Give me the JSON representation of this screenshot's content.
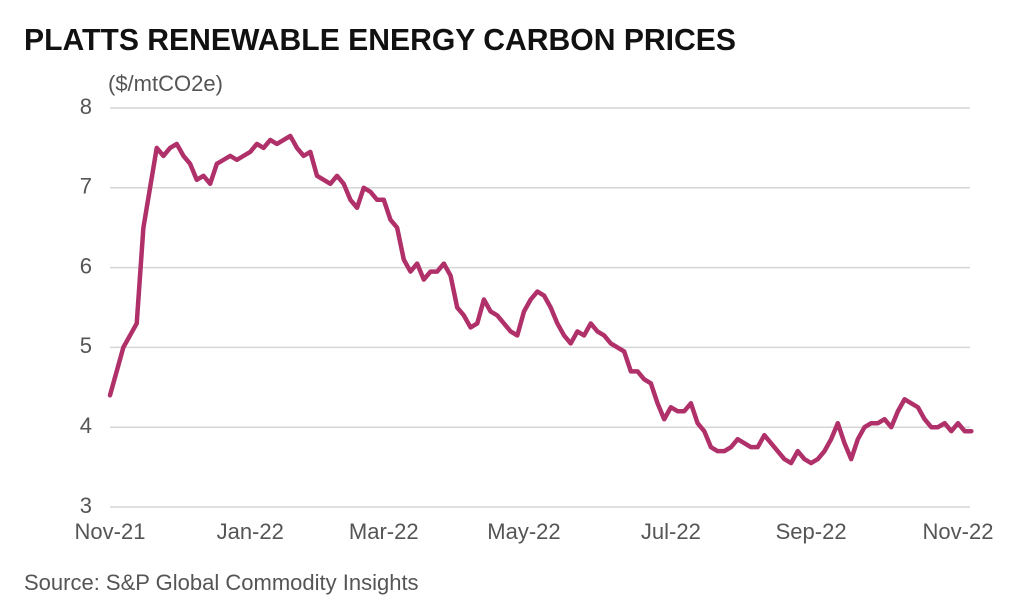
{
  "chart_data": {
    "type": "line",
    "title": "PLATTS RENEWABLE ENERGY CARBON PRICES",
    "y_label": "($/mtCO2e)",
    "source": "Source: S&P Global Commodity Insights",
    "categories": [
      "Nov-21",
      null,
      null,
      null,
      null,
      null,
      null,
      null,
      null,
      null,
      null,
      null,
      null,
      null,
      null,
      null,
      null,
      null,
      null,
      null,
      null,
      "Jan-22",
      null,
      null,
      null,
      null,
      null,
      null,
      null,
      null,
      null,
      null,
      null,
      null,
      null,
      null,
      null,
      null,
      null,
      null,
      null,
      "Mar-22",
      null,
      null,
      null,
      null,
      null,
      null,
      null,
      null,
      null,
      null,
      null,
      null,
      null,
      null,
      null,
      null,
      null,
      null,
      null,
      null,
      "May-22",
      null,
      null,
      null,
      null,
      null,
      null,
      null,
      null,
      null,
      null,
      null,
      null,
      null,
      null,
      null,
      null,
      null,
      null,
      null,
      null,
      null,
      "Jul-22",
      null,
      null,
      null,
      null,
      null,
      null,
      null,
      null,
      null,
      null,
      null,
      null,
      null,
      null,
      null,
      null,
      null,
      null,
      null,
      null,
      "Sep-22",
      null,
      null,
      null,
      null,
      null,
      null,
      null,
      null,
      null,
      null,
      null,
      null,
      null,
      null,
      null,
      null,
      null,
      null,
      null,
      null,
      null,
      "Nov-22",
      null,
      null
    ],
    "series": [
      {
        "name": "Carbon price",
        "color": "#b0306a",
        "values": [
          4.4,
          4.7,
          5.0,
          5.15,
          5.3,
          6.5,
          7.0,
          7.5,
          7.4,
          7.5,
          7.55,
          7.4,
          7.3,
          7.1,
          7.15,
          7.05,
          7.3,
          7.35,
          7.4,
          7.35,
          7.4,
          7.45,
          7.55,
          7.5,
          7.6,
          7.55,
          7.6,
          7.65,
          7.5,
          7.4,
          7.45,
          7.15,
          7.1,
          7.05,
          7.15,
          7.05,
          6.85,
          6.75,
          7.0,
          6.95,
          6.85,
          6.85,
          6.6,
          6.5,
          6.1,
          5.95,
          6.05,
          5.85,
          5.95,
          5.95,
          6.05,
          5.9,
          5.5,
          5.4,
          5.25,
          5.3,
          5.6,
          5.45,
          5.4,
          5.3,
          5.2,
          5.15,
          5.45,
          5.6,
          5.7,
          5.65,
          5.5,
          5.3,
          5.15,
          5.05,
          5.2,
          5.15,
          5.3,
          5.2,
          5.15,
          5.05,
          5.0,
          4.95,
          4.7,
          4.7,
          4.6,
          4.55,
          4.3,
          4.1,
          4.25,
          4.2,
          4.2,
          4.3,
          4.05,
          3.95,
          3.75,
          3.7,
          3.7,
          3.75,
          3.85,
          3.8,
          3.75,
          3.75,
          3.9,
          3.8,
          3.7,
          3.6,
          3.55,
          3.7,
          3.6,
          3.55,
          3.6,
          3.7,
          3.85,
          4.05,
          3.8,
          3.6,
          3.85,
          4.0,
          4.05,
          4.05,
          4.1,
          4.0,
          4.2,
          4.35,
          4.3,
          4.25,
          4.1,
          4.0,
          4.0,
          4.05,
          3.95,
          4.05,
          3.95,
          3.95
        ]
      }
    ],
    "ylim": [
      3,
      8
    ],
    "yticks": [
      3,
      4,
      5,
      6,
      7,
      8
    ],
    "grid": true
  }
}
